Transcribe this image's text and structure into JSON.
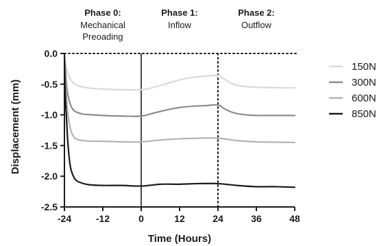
{
  "chart_data": {
    "type": "line",
    "xlabel": "Time (Hours)",
    "ylabel": "Displacement (mm)",
    "xlim": [
      -24,
      48
    ],
    "ylim": [
      -2.5,
      0.0
    ],
    "x_ticks": [
      -24,
      -12,
      0,
      12,
      24,
      36,
      48
    ],
    "x_tick_labels": [
      "-24",
      "-12",
      "0",
      "12",
      "24",
      "36",
      "48"
    ],
    "y_ticks": [
      0.0,
      -0.5,
      -1.0,
      -1.5,
      -2.0,
      -2.5
    ],
    "y_tick_labels": [
      "0.0",
      "-0.5",
      "-1.0",
      "-1.5",
      "-2.0",
      "-2.5"
    ],
    "legend_position": "right",
    "grid": false,
    "phases": [
      {
        "title": "Phase 0:",
        "lines": [
          "Mechanical",
          "Preoading"
        ]
      },
      {
        "title": "Phase 1:",
        "lines": [
          "Inflow"
        ]
      },
      {
        "title": "Phase 2:",
        "lines": [
          "Outflow"
        ]
      }
    ],
    "phase_boundaries": [
      {
        "x": 0,
        "style": "solid"
      },
      {
        "x": 24,
        "style": "dotted"
      }
    ],
    "series": [
      {
        "name": "150N",
        "color": "#d9d9d9",
        "x": [
          -24,
          -23.5,
          -23,
          -22,
          -21,
          -20,
          -18,
          -15,
          -12,
          -6,
          0,
          4,
          8,
          12,
          16,
          20,
          24,
          26,
          28,
          30,
          33,
          36,
          40,
          44,
          48
        ],
        "y": [
          -0.02,
          -0.2,
          -0.32,
          -0.43,
          -0.49,
          -0.52,
          -0.55,
          -0.57,
          -0.58,
          -0.59,
          -0.59,
          -0.55,
          -0.49,
          -0.43,
          -0.39,
          -0.37,
          -0.36,
          -0.42,
          -0.48,
          -0.52,
          -0.54,
          -0.55,
          -0.555,
          -0.56,
          -0.56
        ]
      },
      {
        "name": "300N",
        "color": "#8c8c8c",
        "x": [
          -24,
          -23.5,
          -23,
          -22,
          -21,
          -20,
          -18,
          -15,
          -12,
          -6,
          0,
          4,
          8,
          12,
          16,
          20,
          24,
          26,
          28,
          30,
          33,
          36,
          40,
          44,
          48
        ],
        "y": [
          -0.05,
          -0.4,
          -0.65,
          -0.85,
          -0.93,
          -0.96,
          -0.99,
          -1.0,
          -1.01,
          -1.02,
          -1.02,
          -0.97,
          -0.92,
          -0.88,
          -0.86,
          -0.85,
          -0.84,
          -0.9,
          -0.95,
          -0.98,
          -1.0,
          -1.01,
          -1.01,
          -1.01,
          -1.01
        ]
      },
      {
        "name": "600N",
        "color": "#b3b3b3",
        "x": [
          -24,
          -23.5,
          -23,
          -22,
          -21,
          -20,
          -18,
          -15,
          -12,
          -6,
          0,
          6,
          12,
          18,
          24,
          30,
          36,
          42,
          48
        ],
        "y": [
          -0.1,
          -0.6,
          -0.95,
          -1.25,
          -1.36,
          -1.4,
          -1.42,
          -1.43,
          -1.43,
          -1.44,
          -1.44,
          -1.41,
          -1.39,
          -1.38,
          -1.38,
          -1.42,
          -1.44,
          -1.445,
          -1.45
        ]
      },
      {
        "name": "850N",
        "color": "#1a1a1a",
        "x": [
          -24,
          -23.7,
          -23.3,
          -23,
          -22.5,
          -22,
          -21,
          -20,
          -18,
          -16,
          -12,
          -6,
          0,
          6,
          12,
          18,
          24,
          30,
          36,
          42,
          48
        ],
        "y": [
          -0.05,
          -0.7,
          -1.1,
          -1.4,
          -1.7,
          -1.88,
          -2.02,
          -2.08,
          -2.12,
          -2.14,
          -2.15,
          -2.15,
          -2.16,
          -2.13,
          -2.13,
          -2.12,
          -2.12,
          -2.15,
          -2.17,
          -2.17,
          -2.18
        ]
      }
    ]
  }
}
